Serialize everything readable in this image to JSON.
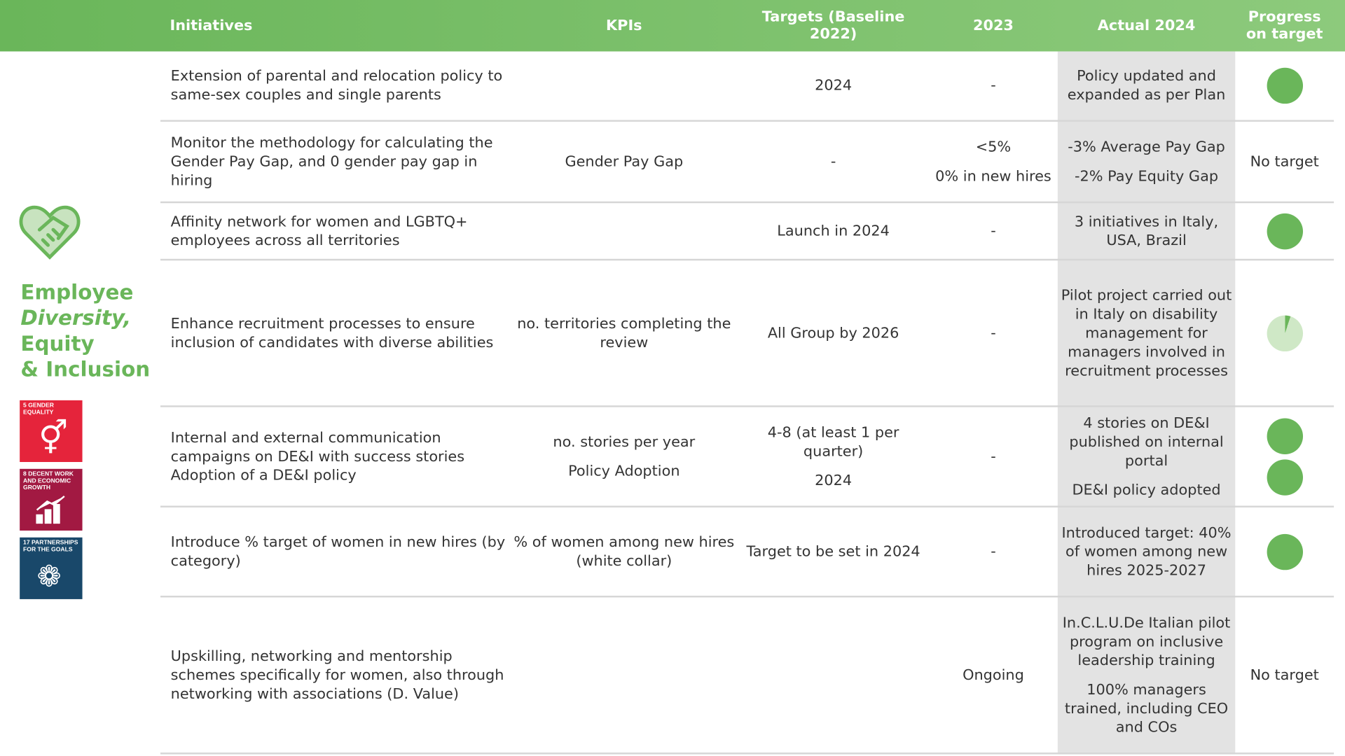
{
  "header": {
    "initiatives": "Initiatives",
    "kpis": "KPIs",
    "targets": "Targets (Baseline 2022)",
    "y2023": "2023",
    "actual": "Actual 2024",
    "progress": "Progress on target"
  },
  "section": {
    "line1": "Employee",
    "line2": "Diversity,",
    "line3": "Equity",
    "line4": "& Inclusion",
    "icon": "heart-handshake-icon",
    "sdgs": [
      "5 Gender Equality",
      "8 Decent Work and Economic Growth",
      "17 Partnerships for the Goals"
    ]
  },
  "colors": {
    "accent": "#6ab65a",
    "actual_bg": "#e3e3e3",
    "sdg5": "#e5243b",
    "sdg8": "#a21942",
    "sdg17": "#19486a"
  },
  "rows": [
    {
      "initiative": "Extension of parental and relocation policy to same-sex couples and single parents",
      "kpi": [],
      "target": [
        "2024"
      ],
      "y2023": [
        "-"
      ],
      "actual": [
        "Policy updated and expanded as per Plan"
      ],
      "progress": [
        {
          "type": "full"
        }
      ]
    },
    {
      "initiative": "Monitor the methodology for calculating the Gender Pay Gap, and 0 gender pay gap in hiring",
      "kpi": [
        "Gender Pay Gap"
      ],
      "target": [
        "-"
      ],
      "y2023": [
        "<5%",
        "0% in new hires"
      ],
      "actual": [
        "-3% Average Pay Gap",
        "-2% Pay Equity Gap"
      ],
      "progress": [
        {
          "type": "text",
          "text": "No target"
        }
      ]
    },
    {
      "initiative": "Affinity network for women and LGBTQ+ employees across all territories",
      "kpi": [],
      "target": [
        "Launch in 2024"
      ],
      "y2023": [
        "-"
      ],
      "actual": [
        "3 initiatives in Italy, USA, Brazil"
      ],
      "progress": [
        {
          "type": "full"
        }
      ]
    },
    {
      "initiative": "Enhance recruitment processes to ensure inclusion of candidates with diverse abilities",
      "kpi": [
        "no. territories completing the review"
      ],
      "target": [
        "All Group by 2026"
      ],
      "y2023": [
        "-"
      ],
      "actual": [
        "Pilot project carried out in Italy on disability management for managers involved in recruitment processes"
      ],
      "progress": [
        {
          "type": "partial",
          "fraction": 0.05
        }
      ]
    },
    {
      "initiative": "Internal and external communication campaigns on DE&I with success stories Adoption of a DE&I policy",
      "kpi": [
        "no. stories per year",
        "Policy Adoption"
      ],
      "target": [
        "4-8 (at least 1 per quarter)",
        "2024"
      ],
      "y2023": [
        "-"
      ],
      "actual": [
        "4 stories on DE&I published on internal portal",
        "DE&I policy adopted"
      ],
      "progress": [
        {
          "type": "full"
        },
        {
          "type": "full"
        }
      ]
    },
    {
      "initiative": "Introduce % target of women in new hires (by category)",
      "kpi": [
        "% of women among new hires (white collar)"
      ],
      "target": [
        "Target to be set in 2024"
      ],
      "y2023": [
        "-"
      ],
      "actual": [
        "Introduced target: 40% of women among new hires 2025-2027"
      ],
      "progress": [
        {
          "type": "full"
        }
      ]
    },
    {
      "initiative": "Upskilling, networking and mentorship schemes specifically for women, also through networking with associations (D. Value)",
      "kpi": [],
      "target": [],
      "y2023": [
        "Ongoing"
      ],
      "actual": [
        "In.C.L.U.De Italian pilot program on inclusive leadership training",
        "100% managers trained, including CEO and COs"
      ],
      "progress": [
        {
          "type": "text",
          "text": "No target"
        }
      ]
    }
  ]
}
